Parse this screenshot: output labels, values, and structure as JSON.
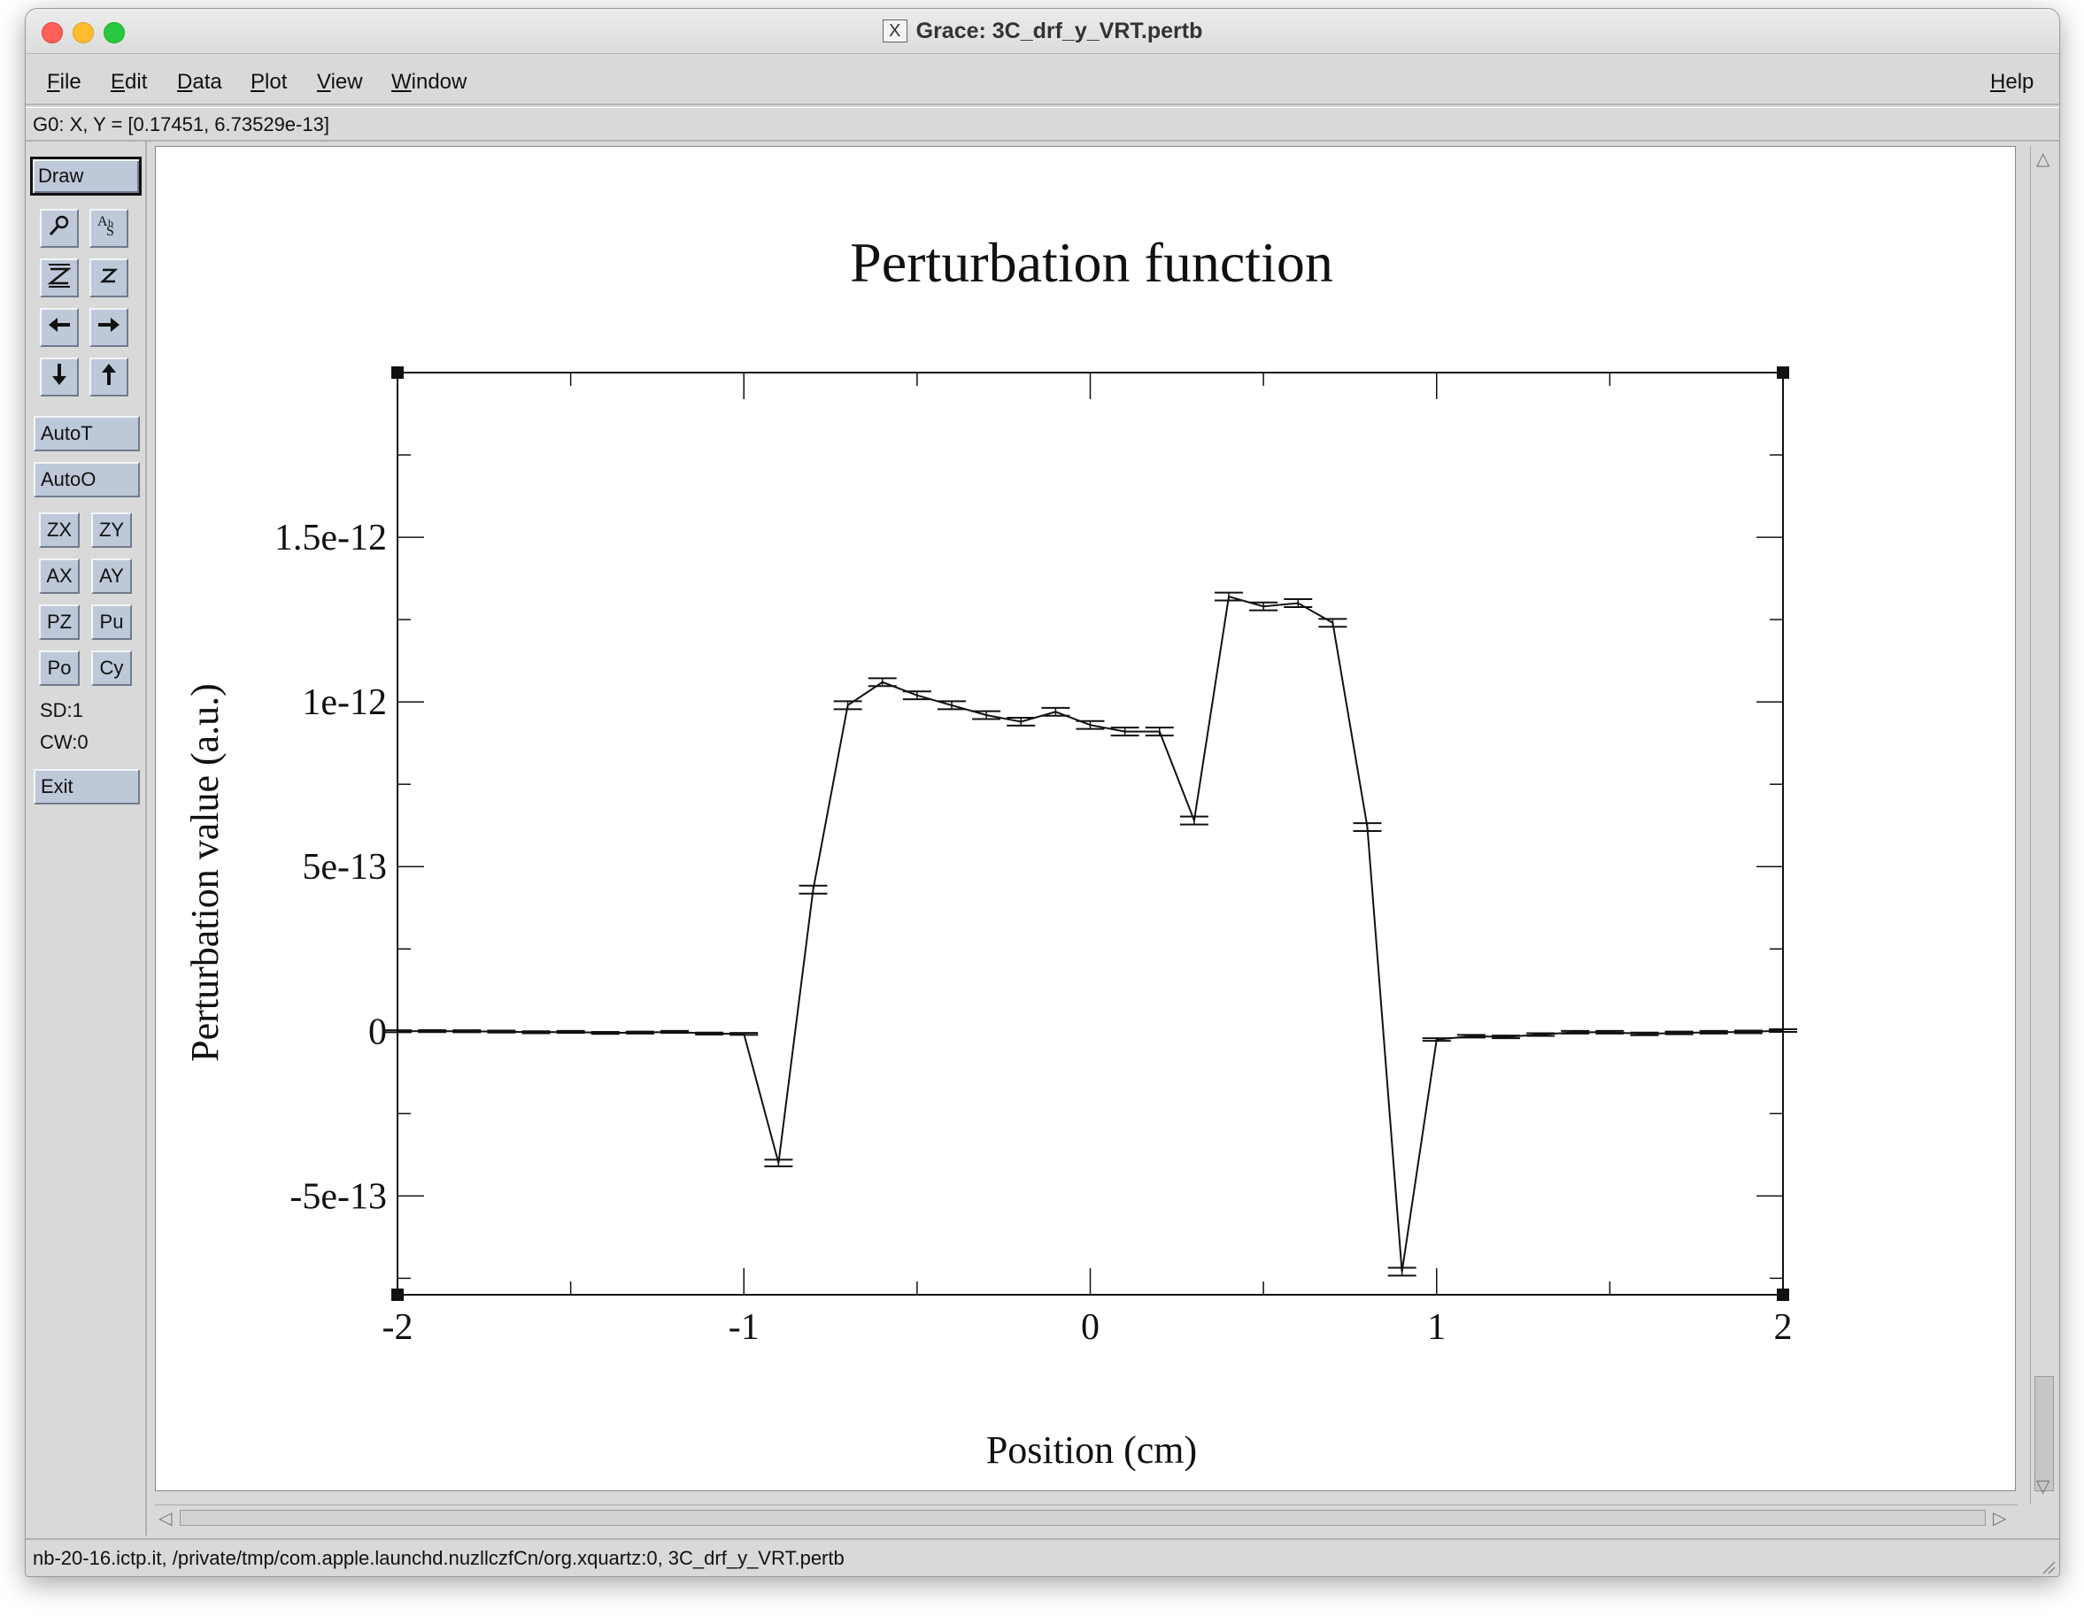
{
  "window": {
    "title": "Grace: 3C_drf_y_VRT.pertb"
  },
  "menu": {
    "items": [
      "File",
      "Edit",
      "Data",
      "Plot",
      "View",
      "Window"
    ],
    "help": "Help"
  },
  "coord_readout": "G0: X, Y = [0.17451, 6.73529e-13]",
  "toolbar": {
    "draw": "Draw",
    "icon_rows": [
      [
        "magnifier-icon",
        "text-abc-icon"
      ],
      [
        "zoom-Z-icon",
        "zoom-z-icon"
      ],
      [
        "arrow-left-icon",
        "arrow-right-icon"
      ],
      [
        "arrow-down-icon",
        "arrow-up-icon"
      ]
    ],
    "autoT": "AutoT",
    "autoO": "AutoO",
    "grid": [
      [
        "ZX",
        "ZY"
      ],
      [
        "AX",
        "AY"
      ],
      [
        "PZ",
        "Pu"
      ],
      [
        "Po",
        "Cy"
      ]
    ],
    "sd": "SD:1",
    "cw": "CW:0",
    "exit": "Exit"
  },
  "status": "nb-20-16.ictp.it, /private/tmp/com.apple.launchd.nuzllczfCn/org.xquartz:0, 3C_drf_y_VRT.pertb",
  "chart_data": {
    "type": "line",
    "title": "Perturbation function",
    "xlabel": "Position (cm)",
    "ylabel": "Perturbation value (a.u.)",
    "xlim": [
      -2,
      2
    ],
    "ylim": [
      -8e-13,
      2e-12
    ],
    "xticks": [
      -2,
      -1,
      0,
      1,
      2
    ],
    "xtick_labels": [
      "-2",
      "-1",
      "0",
      "1",
      "2"
    ],
    "yticks": [
      -5e-13,
      0,
      5e-13,
      1e-12,
      1.5e-12
    ],
    "ytick_labels": [
      "-5e-13",
      "0",
      "5e-13",
      "1e-12",
      "1.5e-12"
    ],
    "error_bars": true,
    "series": [
      {
        "x": [
          -2.0,
          -1.9,
          -1.8,
          -1.7,
          -1.6,
          -1.5,
          -1.4,
          -1.3,
          -1.2,
          -1.1,
          -1.0,
          -0.9,
          -0.8,
          -0.7,
          -0.6,
          -0.5,
          -0.4,
          -0.3,
          -0.2,
          -0.1,
          0.0,
          0.1,
          0.2,
          0.3,
          0.4,
          0.5,
          0.6,
          0.7,
          0.8,
          0.9,
          1.0,
          1.1,
          1.2,
          1.3,
          1.4,
          1.5,
          1.6,
          1.7,
          1.8,
          1.9,
          2.0
        ],
        "y": [
          0.0,
          5e-16,
          0.0,
          -1e-15,
          -3e-15,
          -2e-15,
          -5e-15,
          -4e-15,
          -2e-15,
          -7e-15,
          -8e-15,
          -4e-13,
          4.3e-13,
          9.9e-13,
          1.06e-12,
          1.02e-12,
          9.9e-13,
          9.6e-13,
          9.4e-13,
          9.7e-13,
          9.3e-13,
          9.1e-13,
          9.1e-13,
          6.4e-13,
          1.32e-12,
          1.29e-12,
          1.3e-12,
          1.24e-12,
          6.2e-13,
          -7.3e-13,
          -2.5e-14,
          -1.5e-14,
          -1.7e-14,
          -1e-14,
          -3e-15,
          -3e-15,
          -8e-15,
          -5e-15,
          -3e-15,
          -2e-15,
          2e-15
        ],
        "err": [
          3e-15,
          3e-15,
          3e-15,
          3e-15,
          3e-15,
          3e-15,
          3e-15,
          3e-15,
          3e-15,
          3e-15,
          3e-15,
          1e-14,
          1.2e-14,
          1.2e-14,
          1.2e-14,
          1.2e-14,
          1.2e-14,
          1.2e-14,
          1.2e-14,
          1.2e-14,
          1.2e-14,
          1.2e-14,
          1.2e-14,
          1.2e-14,
          1.2e-14,
          1.2e-14,
          1.2e-14,
          1.2e-14,
          1.2e-14,
          1.2e-14,
          4e-15,
          4e-15,
          4e-15,
          4e-15,
          4e-15,
          4e-15,
          4e-15,
          4e-15,
          4e-15,
          4e-15,
          4e-15
        ]
      }
    ]
  }
}
